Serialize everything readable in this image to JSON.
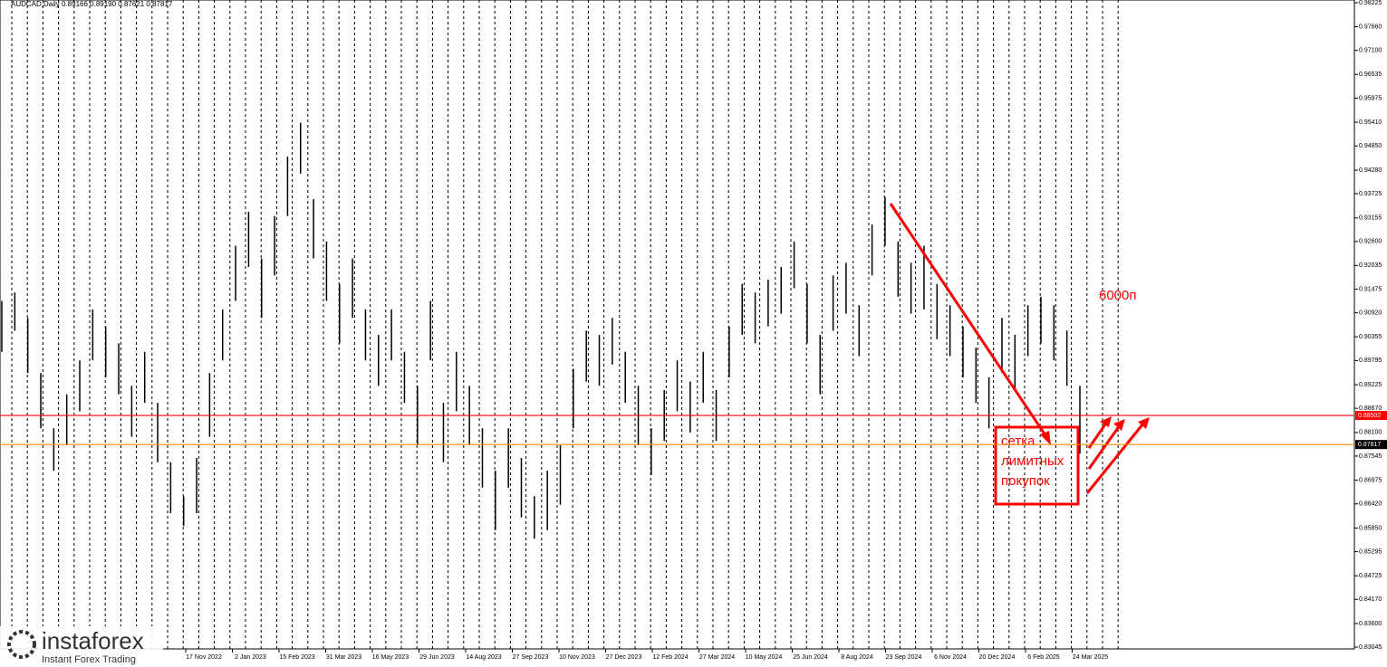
{
  "chart_data": {
    "type": "ohlc",
    "header": "AUDCAD,Daily  0.89166 0.89190 0.87621 0.87817",
    "ylim": [
      0.83045,
      0.98225
    ],
    "yticks": [
      {
        "value": 0.98225,
        "label": "0.98225"
      },
      {
        "value": 0.9766,
        "label": "0.97660"
      },
      {
        "value": 0.971,
        "label": "0.97100"
      },
      {
        "value": 0.96535,
        "label": "0.96535"
      },
      {
        "value": 0.95975,
        "label": "0.95975"
      },
      {
        "value": 0.9541,
        "label": "0.95410"
      },
      {
        "value": 0.9485,
        "label": "0.94850"
      },
      {
        "value": 0.9428,
        "label": "0.94280"
      },
      {
        "value": 0.93725,
        "label": "0.93725"
      },
      {
        "value": 0.93155,
        "label": "0.93155"
      },
      {
        "value": 0.926,
        "label": "0.92600"
      },
      {
        "value": 0.92035,
        "label": "0.92035"
      },
      {
        "value": 0.91475,
        "label": "0.91475"
      },
      {
        "value": 0.9092,
        "label": "0.90920"
      },
      {
        "value": 0.90355,
        "label": "0.90355"
      },
      {
        "value": 0.89795,
        "label": "0.89795"
      },
      {
        "value": 0.89225,
        "label": "0.89225"
      },
      {
        "value": 0.8867,
        "label": "0.88670"
      },
      {
        "value": 0.881,
        "label": "0.88100"
      },
      {
        "value": 0.87545,
        "label": "0.87545"
      },
      {
        "value": 0.86975,
        "label": "0.86975"
      },
      {
        "value": 0.8642,
        "label": "0.86420"
      },
      {
        "value": 0.8585,
        "label": "0.85850"
      },
      {
        "value": 0.85295,
        "label": "0.85295"
      },
      {
        "value": 0.84725,
        "label": "0.84725"
      },
      {
        "value": 0.8417,
        "label": "0.84170"
      },
      {
        "value": 0.836,
        "label": "0.83600"
      },
      {
        "value": 0.83045,
        "label": "0.83045"
      }
    ],
    "date_labels": [
      "17 Nov 2022",
      "2 Jan 2023",
      "15 Feb 2023",
      "31 Mar 2023",
      "16 May 2023",
      "29 Jun 2023",
      "14 Aug 2023",
      "27 Sep 2023",
      "10 Nov 2023",
      "27 Dec 2023",
      "12 Feb 2024",
      "27 Mar 2024",
      "10 May 2024",
      "25 Jun 2024",
      "8 Aug 2024",
      "23 Sep 2024",
      "6 Nov 2024",
      "20 Dec 2024",
      "6 Feb 2025",
      "24 Mar 2025"
    ],
    "levels": [
      {
        "value": 0.88502,
        "label": "0.88502",
        "color": "#ff0000"
      },
      {
        "value": 0.87817,
        "label": "0.87817",
        "color": "#ff8c00"
      }
    ],
    "bars": [
      [
        0.912,
        0.9
      ],
      [
        0.914,
        0.905
      ],
      [
        0.908,
        0.895
      ],
      [
        0.895,
        0.882
      ],
      [
        0.882,
        0.872
      ],
      [
        0.89,
        0.878
      ],
      [
        0.898,
        0.886
      ],
      [
        0.91,
        0.898
      ],
      [
        0.906,
        0.894
      ],
      [
        0.902,
        0.89
      ],
      [
        0.892,
        0.88
      ],
      [
        0.9,
        0.888
      ],
      [
        0.888,
        0.874
      ],
      [
        0.874,
        0.862
      ],
      [
        0.866,
        0.859
      ],
      [
        0.875,
        0.862
      ],
      [
        0.895,
        0.88
      ],
      [
        0.91,
        0.898
      ],
      [
        0.925,
        0.912
      ],
      [
        0.933,
        0.92
      ],
      [
        0.922,
        0.908
      ],
      [
        0.932,
        0.918
      ],
      [
        0.946,
        0.932
      ],
      [
        0.954,
        0.942
      ],
      [
        0.936,
        0.922
      ],
      [
        0.926,
        0.912
      ],
      [
        0.916,
        0.902
      ],
      [
        0.922,
        0.908
      ],
      [
        0.91,
        0.898
      ],
      [
        0.904,
        0.892
      ],
      [
        0.91,
        0.898
      ],
      [
        0.9,
        0.888
      ],
      [
        0.892,
        0.878
      ],
      [
        0.912,
        0.898
      ],
      [
        0.888,
        0.874
      ],
      [
        0.9,
        0.886
      ],
      [
        0.892,
        0.878
      ],
      [
        0.882,
        0.868
      ],
      [
        0.872,
        0.858
      ],
      [
        0.882,
        0.868
      ],
      [
        0.875,
        0.861
      ],
      [
        0.866,
        0.856
      ],
      [
        0.872,
        0.858
      ],
      [
        0.878,
        0.864
      ],
      [
        0.896,
        0.882
      ],
      [
        0.905,
        0.893
      ],
      [
        0.904,
        0.892
      ],
      [
        0.908,
        0.897
      ],
      [
        0.9,
        0.888
      ],
      [
        0.892,
        0.878
      ],
      [
        0.882,
        0.871
      ],
      [
        0.891,
        0.879
      ],
      [
        0.898,
        0.886
      ],
      [
        0.893,
        0.881
      ],
      [
        0.9,
        0.888
      ],
      [
        0.891,
        0.879
      ],
      [
        0.906,
        0.894
      ],
      [
        0.916,
        0.904
      ],
      [
        0.914,
        0.902
      ],
      [
        0.917,
        0.906
      ],
      [
        0.92,
        0.909
      ],
      [
        0.926,
        0.915
      ],
      [
        0.916,
        0.902
      ],
      [
        0.904,
        0.89
      ],
      [
        0.918,
        0.905
      ],
      [
        0.921,
        0.909
      ],
      [
        0.911,
        0.899
      ],
      [
        0.93,
        0.918
      ],
      [
        0.9365,
        0.925
      ],
      [
        0.926,
        0.913
      ],
      [
        0.921,
        0.909
      ],
      [
        0.925,
        0.91
      ],
      [
        0.916,
        0.903
      ],
      [
        0.911,
        0.899
      ],
      [
        0.906,
        0.894
      ],
      [
        0.901,
        0.888
      ],
      [
        0.894,
        0.882
      ],
      [
        0.908,
        0.895
      ],
      [
        0.904,
        0.891
      ],
      [
        0.911,
        0.899
      ],
      [
        0.913,
        0.902
      ],
      [
        0.911,
        0.898
      ],
      [
        0.905,
        0.892
      ],
      [
        0.892,
        0.876
      ]
    ],
    "annotations": {
      "target": "6000п",
      "box": [
        "сетка",
        "лимитных",
        "покупок"
      ]
    },
    "logo": {
      "name": "instaforex",
      "tagline": "Instant Forex Trading"
    }
  }
}
